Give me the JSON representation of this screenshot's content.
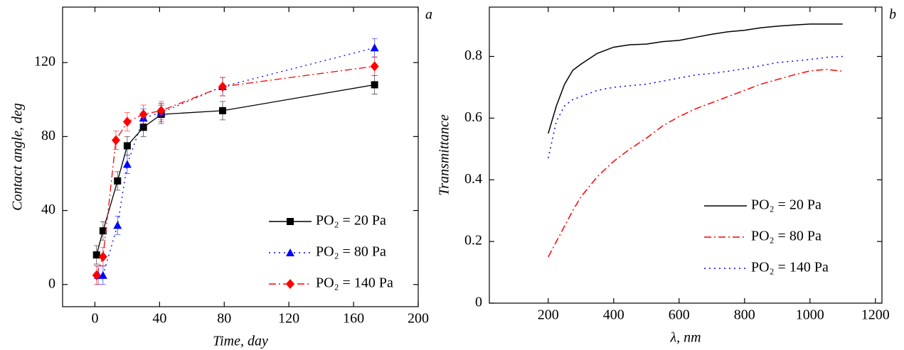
{
  "chart_data": [
    {
      "type": "errorline",
      "panel_label": "a",
      "x_label": "Time, day",
      "y_label": "Contact angle, deg",
      "xlim": [
        -20,
        200
      ],
      "xticks": [
        0,
        40,
        80,
        120,
        160,
        200
      ],
      "ylim": [
        -12,
        150
      ],
      "yticks": [
        0,
        40,
        80,
        120
      ],
      "legend": "lower right",
      "series": [
        {
          "name": "PO₂ = 20 Pa",
          "color": "#000000",
          "marker": "square",
          "line_style": "solid",
          "x": [
            1,
            5,
            14,
            20,
            30,
            41,
            79,
            173
          ],
          "values": [
            16,
            29,
            56,
            75,
            85,
            92,
            94,
            108
          ],
          "errors": [
            5,
            5,
            5,
            5,
            5,
            5,
            5,
            5
          ]
        },
        {
          "name": "PO₂ = 80 Pa",
          "color": "#0000ff",
          "marker": "triangle",
          "line_style": "dotted",
          "x": [
            2,
            5,
            14,
            20,
            30,
            41,
            79,
            173
          ],
          "values": [
            5,
            5,
            32,
            65,
            90,
            93,
            107,
            128
          ],
          "errors": [
            5,
            5,
            5,
            5,
            5,
            5,
            5,
            5
          ]
        },
        {
          "name": "PO₂ = 140 Pa",
          "color": "#ff0000",
          "marker": "diamond",
          "line_style": "dashdot",
          "x": [
            1,
            5,
            13,
            20,
            30,
            41,
            79,
            173
          ],
          "values": [
            5,
            15,
            78,
            88,
            92,
            94,
            107,
            118
          ],
          "errors": [
            5,
            5,
            5,
            5,
            5,
            5,
            5,
            5
          ]
        }
      ]
    },
    {
      "type": "line",
      "panel_label": "b",
      "x_label": "λ, nm",
      "y_label": "Transmittance",
      "xlim": [
        20,
        1220
      ],
      "xticks": [
        200,
        400,
        600,
        800,
        1000,
        1200
      ],
      "ylim": [
        0,
        0.96
      ],
      "yticks": [
        0,
        0.2,
        0.4,
        0.6,
        0.8
      ],
      "legend": "center right",
      "x": [
        200,
        225,
        250,
        275,
        300,
        350,
        400,
        450,
        500,
        550,
        600,
        650,
        700,
        750,
        800,
        850,
        900,
        950,
        1000,
        1050,
        1100
      ],
      "series": [
        {
          "name": "PO₂ = 20 Pa",
          "color": "#000000",
          "line_style": "solid",
          "values": [
            0.55,
            0.64,
            0.71,
            0.755,
            0.775,
            0.81,
            0.83,
            0.838,
            0.84,
            0.848,
            0.852,
            0.862,
            0.872,
            0.88,
            0.885,
            0.893,
            0.898,
            0.902,
            0.905,
            0.905,
            0.905
          ]
        },
        {
          "name": "PO₂ = 80 Pa",
          "color": "#ff0000",
          "line_style": "dashdot",
          "values": [
            0.15,
            0.2,
            0.25,
            0.3,
            0.345,
            0.41,
            0.46,
            0.5,
            0.535,
            0.575,
            0.605,
            0.63,
            0.65,
            0.67,
            0.69,
            0.71,
            0.725,
            0.74,
            0.753,
            0.758,
            0.752
          ]
        },
        {
          "name": "PO₂ = 140 Pa",
          "color": "#0000ff",
          "line_style": "dotted",
          "values": [
            0.47,
            0.59,
            0.64,
            0.66,
            0.67,
            0.69,
            0.7,
            0.705,
            0.71,
            0.72,
            0.73,
            0.74,
            0.745,
            0.752,
            0.76,
            0.77,
            0.78,
            0.785,
            0.79,
            0.797,
            0.8
          ]
        }
      ]
    }
  ]
}
